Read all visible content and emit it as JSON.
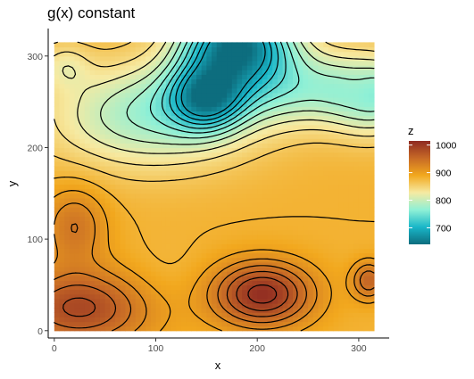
{
  "chart_data": {
    "type": "heatmap",
    "title": "g(x) constant",
    "xlabel": "x",
    "ylabel": "y",
    "xlim": [
      -6,
      330
    ],
    "ylim": [
      -8,
      330
    ],
    "heat_extent": {
      "x": [
        0,
        315
      ],
      "y": [
        0,
        315
      ]
    },
    "x_ticks": [
      0,
      100,
      200,
      300
    ],
    "y_ticks": [
      0,
      100,
      200,
      300
    ],
    "legend": {
      "title": "z",
      "range": [
        640,
        1015
      ],
      "ticks": [
        700,
        800,
        900,
        1000
      ],
      "colors": [
        "#0d6d7e",
        "#19b6c8",
        "#8ff0d6",
        "#f6eaa2",
        "#f2a81e",
        "#c76a26",
        "#8f2a22"
      ],
      "placement": "right"
    },
    "grid": false,
    "peaks": [
      {
        "x": 180,
        "y": 315,
        "z": 660,
        "sx": 38,
        "sy": 30
      },
      {
        "x": 150,
        "y": 255,
        "z": 745,
        "sx": 25,
        "sy": 25
      },
      {
        "x": 240,
        "y": 265,
        "z": 790,
        "sx": 75,
        "sy": 30
      },
      {
        "x": 95,
        "y": 235,
        "z": 780,
        "sx": 70,
        "sy": 40
      },
      {
        "x": 315,
        "y": 255,
        "z": 805,
        "sx": 30,
        "sy": 30
      },
      {
        "x": 10,
        "y": 290,
        "z": 840,
        "sx": 18,
        "sy": 18
      },
      {
        "x": 300,
        "y": 265,
        "z": 900,
        "sx": 15,
        "sy": 18
      },
      {
        "x": 205,
        "y": 40,
        "z": 1010,
        "sx": 35,
        "sy": 25
      },
      {
        "x": 25,
        "y": 25,
        "z": 985,
        "sx": 50,
        "sy": 30
      },
      {
        "x": 20,
        "y": 115,
        "z": 940,
        "sx": 22,
        "sy": 30
      },
      {
        "x": 310,
        "y": 55,
        "z": 955,
        "sx": 12,
        "sy": 15
      },
      {
        "x": 105,
        "y": 55,
        "z": 870,
        "sx": 30,
        "sy": 28
      }
    ],
    "base_level": 880,
    "contour_levels": [
      680,
      700,
      720,
      740,
      760,
      780,
      800,
      820,
      840,
      860,
      880,
      900,
      920,
      940,
      960,
      980,
      1000
    ]
  }
}
